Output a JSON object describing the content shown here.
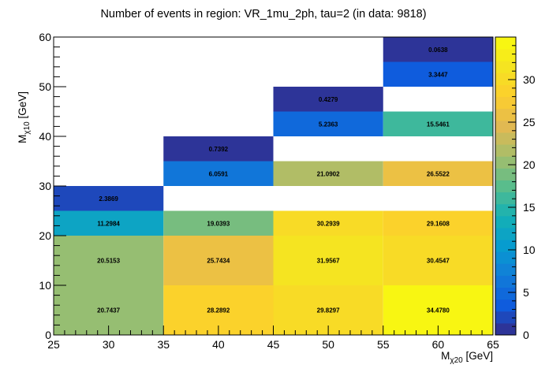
{
  "chart_data": {
    "type": "heatmap",
    "title": "Number of events in region: VR_1mu_2ph, tau=2 (in data: 9818)",
    "xlabel": "M_χ20 [GeV]",
    "ylabel": "M_χ10 [GeV]",
    "xlabel_main": "M",
    "xlabel_sub": "χ20",
    "xlabel_unit": " [GeV]",
    "ylabel_main": "M",
    "ylabel_sub": "χ10",
    "ylabel_unit": " [GeV]",
    "xlim": [
      25,
      65
    ],
    "ylim": [
      0,
      60
    ],
    "x_edges": [
      25,
      35,
      45,
      55,
      65
    ],
    "y_edges": [
      0,
      10,
      20,
      25,
      30,
      35,
      40,
      45,
      50,
      55,
      60
    ],
    "x_ticks": [
      25,
      30,
      35,
      40,
      45,
      50,
      55,
      60,
      65
    ],
    "y_ticks": [
      0,
      10,
      20,
      30,
      40,
      50,
      60
    ],
    "colorbar": {
      "min": 0,
      "max": 35,
      "ticks": [
        0,
        5,
        10,
        15,
        20,
        25,
        30
      ]
    },
    "cells": [
      {
        "x": [
          25,
          35
        ],
        "y": [
          0,
          10
        ],
        "value": "20.7437"
      },
      {
        "x": [
          25,
          35
        ],
        "y": [
          10,
          20
        ],
        "value": "20.5153"
      },
      {
        "x": [
          25,
          35
        ],
        "y": [
          20,
          25
        ],
        "value": "11.2984"
      },
      {
        "x": [
          25,
          35
        ],
        "y": [
          25,
          30
        ],
        "value": "2.3869"
      },
      {
        "x": [
          35,
          45
        ],
        "y": [
          0,
          10
        ],
        "value": "28.2892"
      },
      {
        "x": [
          35,
          45
        ],
        "y": [
          10,
          20
        ],
        "value": "25.7434"
      },
      {
        "x": [
          35,
          45
        ],
        "y": [
          20,
          25
        ],
        "value": "19.0393"
      },
      {
        "x": [
          35,
          45
        ],
        "y": [
          30,
          35
        ],
        "value": "6.0591"
      },
      {
        "x": [
          35,
          45
        ],
        "y": [
          35,
          40
        ],
        "value": "0.7392"
      },
      {
        "x": [
          45,
          55
        ],
        "y": [
          0,
          10
        ],
        "value": "29.8297"
      },
      {
        "x": [
          45,
          55
        ],
        "y": [
          10,
          20
        ],
        "value": "31.9567"
      },
      {
        "x": [
          45,
          55
        ],
        "y": [
          20,
          25
        ],
        "value": "30.2939"
      },
      {
        "x": [
          45,
          55
        ],
        "y": [
          30,
          35
        ],
        "value": "21.0902"
      },
      {
        "x": [
          45,
          55
        ],
        "y": [
          40,
          45
        ],
        "value": "5.2363"
      },
      {
        "x": [
          45,
          55
        ],
        "y": [
          45,
          50
        ],
        "value": "0.4279"
      },
      {
        "x": [
          55,
          65
        ],
        "y": [
          0,
          10
        ],
        "value": "34.4780"
      },
      {
        "x": [
          55,
          65
        ],
        "y": [
          10,
          20
        ],
        "value": "30.4547"
      },
      {
        "x": [
          55,
          65
        ],
        "y": [
          20,
          25
        ],
        "value": "29.1608"
      },
      {
        "x": [
          55,
          65
        ],
        "y": [
          30,
          35
        ],
        "value": "26.5522"
      },
      {
        "x": [
          55,
          65
        ],
        "y": [
          40,
          45
        ],
        "value": "15.5461"
      },
      {
        "x": [
          55,
          65
        ],
        "y": [
          50,
          55
        ],
        "value": "3.3447"
      },
      {
        "x": [
          55,
          65
        ],
        "y": [
          55,
          60
        ],
        "value": "0.0638"
      }
    ],
    "grid": false,
    "palette": "kBird"
  }
}
